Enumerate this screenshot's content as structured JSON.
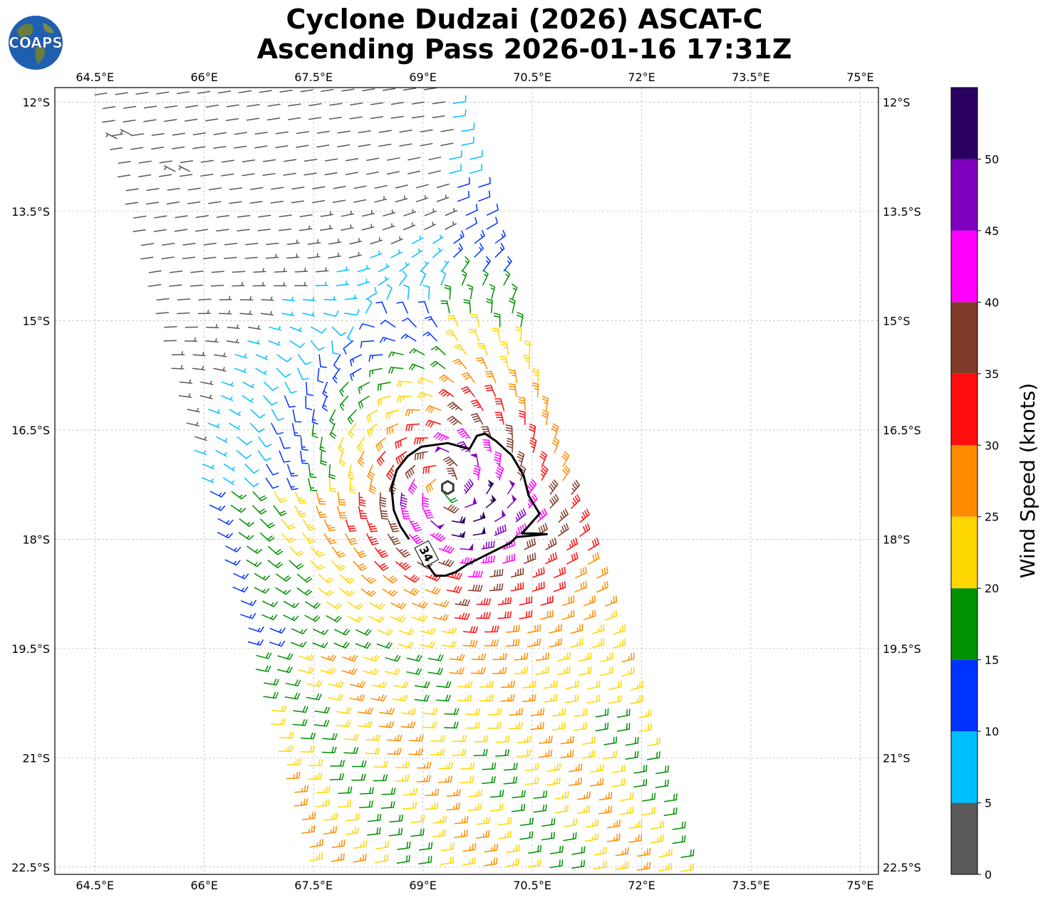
{
  "title": {
    "line1": "Cyclone Dudzai (2026) ASCAT-C",
    "line2": "Ascending Pass 2026-01-16 17:31Z"
  },
  "logo": {
    "text": "COAPS",
    "colors": {
      "ocean": "#1f5fb0",
      "land": "#6a7d3a"
    }
  },
  "map": {
    "lon_range": [
      63.95,
      75.25
    ],
    "lat_range": [
      -22.6,
      -11.8
    ],
    "lon_ticks": [
      "64.5°E",
      "66°E",
      "67.5°E",
      "69°E",
      "70.5°E",
      "72°E",
      "73.5°E",
      "75°E"
    ],
    "lon_values": [
      64.5,
      66,
      67.5,
      69,
      70.5,
      72,
      73.5,
      75
    ],
    "lat_ticks": [
      "12°S",
      "13.5°S",
      "15°S",
      "16.5°S",
      "18°S",
      "19.5°S",
      "21°S",
      "22.5°S"
    ],
    "lat_values": [
      -12,
      -13.5,
      -15,
      -16.5,
      -18,
      -19.5,
      -21,
      -22.5
    ],
    "grid": true
  },
  "cyclone": {
    "center_lon": 69.34,
    "center_lat": -17.29,
    "contour_label": "34",
    "contour_34kt": [
      [
        68.81,
        -18.0
      ],
      [
        68.69,
        -17.82
      ],
      [
        68.6,
        -17.6
      ],
      [
        68.57,
        -17.3
      ],
      [
        68.64,
        -17.05
      ],
      [
        68.79,
        -16.86
      ],
      [
        68.98,
        -16.73
      ],
      [
        69.34,
        -16.68
      ],
      [
        69.64,
        -16.76
      ],
      [
        69.74,
        -16.58
      ],
      [
        69.85,
        -16.55
      ],
      [
        70.0,
        -16.65
      ],
      [
        70.22,
        -16.85
      ],
      [
        70.38,
        -17.12
      ],
      [
        70.45,
        -17.4
      ],
      [
        70.6,
        -17.65
      ],
      [
        70.36,
        -17.92
      ],
      [
        70.55,
        -17.92
      ],
      [
        70.7,
        -17.93
      ],
      [
        70.28,
        -17.97
      ],
      [
        70.2,
        -18.05
      ],
      [
        69.9,
        -18.2
      ],
      [
        69.6,
        -18.35
      ],
      [
        69.45,
        -18.45
      ],
      [
        69.31,
        -18.5
      ],
      [
        69.17,
        -18.5
      ],
      [
        69.05,
        -18.33
      ]
    ]
  },
  "colorbar": {
    "label": "Wind Speed (knots)",
    "ticks": [
      "0",
      "5",
      "10",
      "15",
      "20",
      "25",
      "30",
      "35",
      "40",
      "45",
      "50"
    ],
    "bins": [
      {
        "min": 0,
        "max": 5,
        "color": "#595959"
      },
      {
        "min": 5,
        "max": 10,
        "color": "#00bfff"
      },
      {
        "min": 10,
        "max": 15,
        "color": "#0033ff"
      },
      {
        "min": 15,
        "max": 20,
        "color": "#009000"
      },
      {
        "min": 20,
        "max": 25,
        "color": "#ffd700"
      },
      {
        "min": 25,
        "max": 30,
        "color": "#ff8c00"
      },
      {
        "min": 30,
        "max": 35,
        "color": "#ff0d0d"
      },
      {
        "min": 35,
        "max": 40,
        "color": "#7f3a28"
      },
      {
        "min": 40,
        "max": 45,
        "color": "#ff00ff"
      },
      {
        "min": 45,
        "max": 50,
        "color": "#8000c0"
      },
      {
        "min": 50,
        "max": 55,
        "color": "#2a0060"
      }
    ]
  },
  "swath": {
    "top_edge": [
      [
        64.5,
        -11.9
      ],
      [
        69.3,
        -11.9
      ]
    ],
    "bottom_edge": [
      [
        67.5,
        -22.6
      ],
      [
        72.6,
        -22.6
      ]
    ]
  },
  "calm_barbs": [
    [
      64.8,
      -12.5
    ],
    [
      65.0,
      -12.45
    ],
    [
      65.8,
      -12.95
    ],
    [
      65.6,
      -12.95
    ]
  ]
}
